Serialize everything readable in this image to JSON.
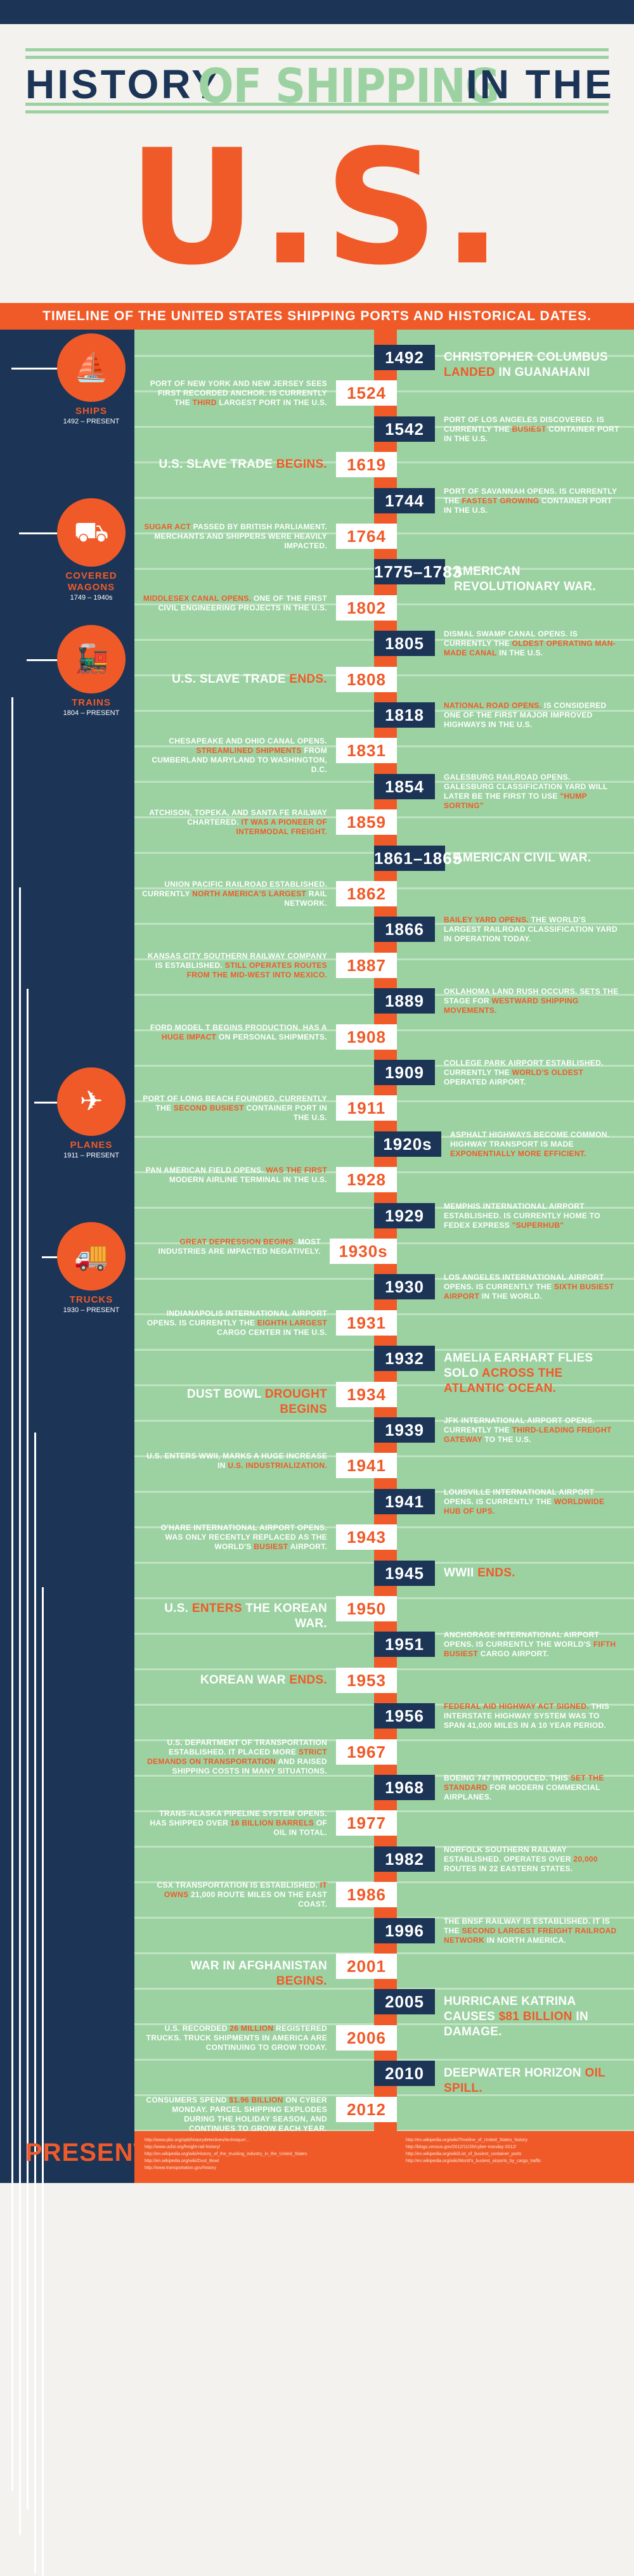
{
  "title": {
    "word1": "HISTORY",
    "word2": "OF SHIPPING",
    "word3": "IN THE",
    "word4": "U.S."
  },
  "subtitle": "TIMELINE OF THE UNITED STATES SHIPPING PORTS AND HISTORICAL DATES.",
  "modes": [
    {
      "name": "SHIPS",
      "years": "1492 – PRESENT",
      "icon": "ship-icon"
    },
    {
      "name": "COVERED WAGONS",
      "years": "1749 – 1940s",
      "icon": "covered-wagon-icon"
    },
    {
      "name": "TRAINS",
      "years": "1804 – PRESENT",
      "icon": "train-icon"
    },
    {
      "name": "PLANES",
      "years": "1911 – PRESENT",
      "icon": "plane-icon"
    },
    {
      "name": "TRUCKS",
      "years": "1930 – PRESENT",
      "icon": "truck-icon"
    }
  ],
  "present_label": "PRESENT",
  "events": [
    {
      "year": "1492",
      "side": "right",
      "size": "big",
      "pre": "CHRISTOPHER COLUMBUS ",
      "hl": "LANDED",
      "post": " IN GUANAHANI"
    },
    {
      "year": "1524",
      "side": "left",
      "size": "sml",
      "pre": "PORT OF NEW YORK AND NEW JERSEY SEES FIRST RECORDED ANCHOR. IS CURRENTLY THE ",
      "hl": "THIRD",
      "post": " LARGEST PORT IN THE U.S."
    },
    {
      "year": "1542",
      "side": "right",
      "size": "sml",
      "pre": "PORT OF LOS ANGELES DISCOVERED. IS CURRENTLY THE ",
      "hl": "BUSIEST",
      "post": " CONTAINER PORT IN THE U.S."
    },
    {
      "year": "1619",
      "side": "left",
      "size": "big",
      "pre": "U.S. SLAVE TRADE ",
      "hl": "BEGINS.",
      "post": ""
    },
    {
      "year": "1744",
      "side": "right",
      "size": "sml",
      "pre": "PORT OF SAVANNAH OPENS. IS CURRENTLY THE ",
      "hl": "FASTEST GROWING",
      "post": " CONTAINER PORT IN THE U.S."
    },
    {
      "year": "1764",
      "side": "left",
      "size": "sml",
      "pre": "",
      "hl": "SUGAR ACT",
      "post": " PASSED BY BRITISH PARLIAMENT. MERCHANTS AND SHIPPERS WERE HEAVILY IMPACTED."
    },
    {
      "year": "1775–1783",
      "side": "right",
      "size": "big",
      "pre": "AMERICAN REVOLUTIONARY WAR.",
      "hl": "",
      "post": ""
    },
    {
      "year": "1802",
      "side": "left",
      "size": "sml",
      "pre": "",
      "hl": "MIDDLESEX CANAL OPENS.",
      "post": " ONE OF THE FIRST CIVIL ENGINEERING PROJECTS IN THE U.S."
    },
    {
      "year": "1805",
      "side": "right",
      "size": "sml",
      "pre": "DISMAL SWAMP CANAL OPENS. IS CURRENTLY THE ",
      "hl": "OLDEST OPERATING MAN-MADE CANAL",
      "post": " IN THE U.S."
    },
    {
      "year": "1808",
      "side": "left",
      "size": "big",
      "pre": "U.S. SLAVE TRADE ",
      "hl": "ENDS.",
      "post": ""
    },
    {
      "year": "1818",
      "side": "right",
      "size": "sml",
      "pre": "",
      "hl": "NATIONAL ROAD OPENS.",
      "post": " IS CONSIDERED ONE OF THE FIRST MAJOR IMPROVED HIGHWAYS IN THE U.S."
    },
    {
      "year": "1831",
      "side": "left",
      "size": "sml",
      "pre": "CHESAPEAKE AND OHIO CANAL OPENS. ",
      "hl": "STREAMLINED SHIPMENTS",
      "post": " FROM CUMBERLAND MARYLAND TO WASHINGTON, D.C."
    },
    {
      "year": "1854",
      "side": "right",
      "size": "sml",
      "pre": "GALESBURG RAILROAD OPENS. GALESBURG CLASSIFICATION YARD WILL LATER BE THE FIRST TO USE ",
      "hl": "\"HUMP SORTING\"",
      "post": ""
    },
    {
      "year": "1859",
      "side": "left",
      "size": "sml",
      "pre": "ATCHISON, TOPEKA, AND SANTA FE RAILWAY CHARTERED. ",
      "hl": "IT WAS A PIONEER OF INTERMODAL FREIGHT.",
      "post": ""
    },
    {
      "year": "1861–1865",
      "side": "right",
      "size": "big",
      "pre": "AMERICAN CIVIL WAR.",
      "hl": "",
      "post": ""
    },
    {
      "year": "1862",
      "side": "left",
      "size": "sml",
      "pre": "UNION PACIFIC RAILROAD ESTABLISHED. CURRENTLY ",
      "hl": "NORTH AMERICA'S LARGEST",
      "post": " RAIL NETWORK."
    },
    {
      "year": "1866",
      "side": "right",
      "size": "sml",
      "pre": "",
      "hl": "BAILEY YARD OPENS.",
      "post": " THE WORLD'S LARGEST RAILROAD CLASSIFICATION YARD IN OPERATION TODAY."
    },
    {
      "year": "1887",
      "side": "left",
      "size": "sml",
      "pre": "KANSAS CITY SOUTHERN RAILWAY COMPANY IS ESTABLISHED. ",
      "hl": "STILL OPERATES ROUTES FROM THE MID-WEST INTO MEXICO.",
      "post": ""
    },
    {
      "year": "1889",
      "side": "right",
      "size": "sml",
      "pre": "OKLAHOMA LAND RUSH OCCURS. SETS THE STAGE FOR ",
      "hl": "WESTWARD SHIPPING MOVEMENTS.",
      "post": ""
    },
    {
      "year": "1908",
      "side": "left",
      "size": "sml",
      "pre": "FORD MODEL T BEGINS PRODUCTION. HAS A ",
      "hl": "HUGE IMPACT",
      "post": " ON PERSONAL SHIPMENTS."
    },
    {
      "year": "1909",
      "side": "right",
      "size": "sml",
      "pre": "COLLEGE PARK AIRPORT ESTABLISHED. CURRENTLY THE ",
      "hl": "WORLD'S OLDEST",
      "post": " OPERATED AIRPORT."
    },
    {
      "year": "1911",
      "side": "left",
      "size": "sml",
      "pre": "PORT OF LONG BEACH FOUNDED. CURRENTLY THE ",
      "hl": "SECOND BUSIEST",
      "post": " CONTAINER PORT IN THE U.S."
    },
    {
      "year": "1920s",
      "side": "right",
      "size": "sml",
      "pre": "ASPHALT HIGHWAYS BECOME COMMON. HIGHWAY TRANSPORT IS MADE ",
      "hl": "EXPONENTIALLY MORE EFFICIENT.",
      "post": ""
    },
    {
      "year": "1928",
      "side": "left",
      "size": "sml",
      "pre": "PAN AMERICAN FIELD OPENS. ",
      "hl": "WAS THE FIRST",
      "post": " MODERN AIRLINE TERMINAL IN THE U.S."
    },
    {
      "year": "1929",
      "side": "right",
      "size": "sml",
      "pre": "MEMPHIS INTERNATIONAL AIRPORT ESTABLISHED. IS CURRENTLY HOME TO FEDEX EXPRESS ",
      "hl": "\"SUPERHUB\"",
      "post": ""
    },
    {
      "year": "1930s",
      "side": "left",
      "size": "sml",
      "pre": "",
      "hl": "GREAT DEPRESSION BEGINS.",
      "post": " MOST INDUSTRIES ARE IMPACTED NEGATIVELY."
    },
    {
      "year": "1930",
      "side": "right",
      "size": "sml",
      "pre": "LOS ANGELES INTERNATIONAL AIRPORT OPENS. IS CURRENTLY THE ",
      "hl": "SIXTH BUSIEST AIRPORT",
      "post": " IN THE WORLD."
    },
    {
      "year": "1931",
      "side": "left",
      "size": "sml",
      "pre": "INDIANAPOLIS INTERNATIONAL AIRPORT OPENS. IS CURRENTLY THE ",
      "hl": "EIGHTH LARGEST",
      "post": " CARGO CENTER IN THE U.S."
    },
    {
      "year": "1932",
      "side": "right",
      "size": "big",
      "pre": "AMELIA EARHART FLIES SOLO ",
      "hl": "ACROSS THE ATLANTIC OCEAN.",
      "post": ""
    },
    {
      "year": "1934",
      "side": "left",
      "size": "big",
      "pre": "DUST BOWL ",
      "hl": "DROUGHT BEGINS",
      "post": ""
    },
    {
      "year": "1939",
      "side": "right",
      "size": "sml",
      "pre": "JFK INTERNATIONAL AIRPORT OPENS. CURRENTLY THE ",
      "hl": "THIRD-LEADING FREIGHT GATEWAY",
      "post": " TO THE U.S."
    },
    {
      "year": "1941",
      "side": "left",
      "size": "sml",
      "pre": "U.S. ENTERS WWII, MARKS A HUGE INCREASE IN ",
      "hl": "U.S. INDUSTRIALIZATION.",
      "post": ""
    },
    {
      "year": "1941",
      "side": "right",
      "size": "sml",
      "pre": "LOUISVILLE INTERNATIONAL AIRPORT OPENS. IS CURRENTLY THE ",
      "hl": "WORLDWIDE HUB OF UPS.",
      "post": ""
    },
    {
      "year": "1943",
      "side": "left",
      "size": "sml",
      "pre": "O'HARE INTERNATIONAL AIRPORT OPENS. WAS ONLY RECENTLY REPLACED AS THE WORLD'S ",
      "hl": "BUSIEST",
      "post": " AIRPORT."
    },
    {
      "year": "1945",
      "side": "right",
      "size": "big",
      "pre": "WWII ",
      "hl": "ENDS.",
      "post": ""
    },
    {
      "year": "1950",
      "side": "left",
      "size": "big",
      "pre": "U.S. ",
      "hl": "ENTERS",
      "post": " THE KOREAN WAR."
    },
    {
      "year": "1951",
      "side": "right",
      "size": "sml",
      "pre": "ANCHORAGE INTERNATIONAL AIRPORT OPENS. IS CURRENTLY THE WORLD'S ",
      "hl": "FIFTH BUSIEST",
      "post": " CARGO AIRPORT."
    },
    {
      "year": "1953",
      "side": "left",
      "size": "big",
      "pre": "KOREAN WAR ",
      "hl": "ENDS.",
      "post": ""
    },
    {
      "year": "1956",
      "side": "right",
      "size": "sml",
      "pre": "",
      "hl": "FEDERAL AID HIGHWAY ACT SIGNED.",
      "post": " THIS INTERSTATE HIGHWAY SYSTEM WAS TO SPAN 41,000 MILES IN A 10 YEAR PERIOD."
    },
    {
      "year": "1967",
      "side": "left",
      "size": "sml",
      "pre": "U.S. DEPARTMENT OF TRANSPORTATION ESTABLISHED. IT PLACED MORE ",
      "hl": "STRICT DEMANDS ON TRANSPORTATION",
      "post": " AND RAISED SHIPPING COSTS IN MANY SITUATIONS."
    },
    {
      "year": "1968",
      "side": "right",
      "size": "sml",
      "pre": "BOEING 747 INTRODUCED. THIS ",
      "hl": "SET THE STANDARD",
      "post": " FOR MODERN COMMERCIAL AIRPLANES."
    },
    {
      "year": "1977",
      "side": "left",
      "size": "sml",
      "pre": "TRANS-ALASKA PIPELINE SYSTEM OPENS. HAS SHIPPED OVER ",
      "hl": "16 BILLION BARRELS",
      "post": " OF OIL IN TOTAL."
    },
    {
      "year": "1982",
      "side": "right",
      "size": "sml",
      "pre": "NORFOLK SOUTHERN RAILWAY ESTABLISHED. OPERATES OVER ",
      "hl": "20,000",
      "post": " ROUTES IN 22 EASTERN STATES."
    },
    {
      "year": "1986",
      "side": "left",
      "size": "sml",
      "pre": "CSX TRANSPORTATION IS ESTABLISHED. ",
      "hl": "IT OWNS",
      "post": " 21,000 ROUTE MILES ON THE EAST COAST."
    },
    {
      "year": "1996",
      "side": "right",
      "size": "sml",
      "pre": "THE BNSF RAILWAY IS ESTABLISHED. IT IS THE ",
      "hl": "SECOND LARGEST FREIGHT RAILROAD NETWORK",
      "post": " IN NORTH AMERICA."
    },
    {
      "year": "2001",
      "side": "left",
      "size": "big",
      "pre": "WAR IN AFGHANISTAN ",
      "hl": "BEGINS.",
      "post": ""
    },
    {
      "year": "2005",
      "side": "right",
      "size": "big",
      "pre": "HURRICANE KATRINA CAUSES ",
      "hl": "$81 BILLION",
      "post": " IN DAMAGE."
    },
    {
      "year": "2006",
      "side": "left",
      "size": "sml",
      "pre": "U.S. RECORDED ",
      "hl": "26 MILLION",
      "post": " REGISTERED TRUCKS. TRUCK SHIPMENTS IN AMERICA ARE CONTINUING TO GROW TODAY."
    },
    {
      "year": "2010",
      "side": "right",
      "size": "big",
      "pre": "DEEPWATER HORIZON ",
      "hl": "OIL SPILL.",
      "post": ""
    },
    {
      "year": "2012",
      "side": "left",
      "size": "sml",
      "pre": "CONSUMERS SPEND ",
      "hl": "$1.96 BILLION",
      "post": " ON CYBER MONDAY. PARCEL SHIPPING EXPLODES DURING THE HOLIDAY SEASON, AND CONTINUES TO GROW EACH YEAR."
    }
  ],
  "sources_left": [
    "http://www.pbs.org/opb/historydetectives/technique/...",
    "http://www.usfst.org/freight-rail-history/",
    "http://en.wikipedia.org/wiki/History_of_the_trucking_industry_in_the_United_States",
    "http://en.wikipedia.org/wiki/Dust_Bowl",
    "http://www.transportation.gov/history"
  ],
  "sources_right": [
    "http://en.wikipedia.org/wiki/Timeline_of_United_States_history",
    "http://blogs.census.gov/2012/11/26/cyber-monday-2012/",
    "http://en.wikipedia.org/wiki/List_of_busiest_container_ports",
    "http://en.wikipedia.org/wiki/World's_busiest_airports_by_cargo_traffic"
  ]
}
